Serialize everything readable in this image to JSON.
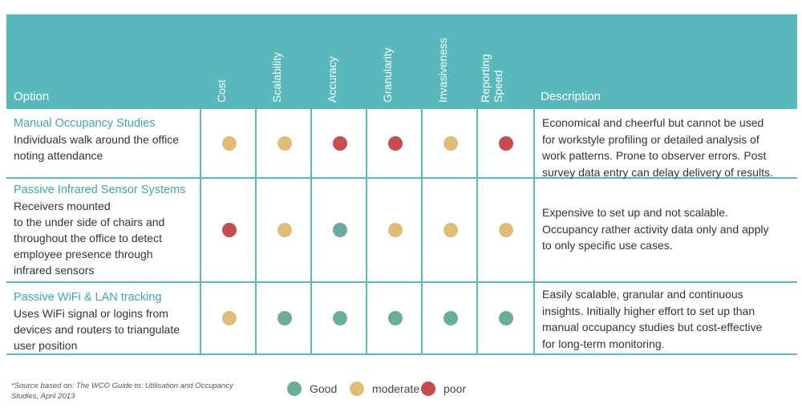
{
  "colors": {
    "header": "#58b8bb",
    "good": "#6aab9c",
    "moderate": "#dfbd77",
    "poor": "#c84b4e",
    "title": "#3aa8ad"
  },
  "header": {
    "option": "Option",
    "description": "Description",
    "criteria": [
      "Cost",
      "Scalability",
      "Accuracy",
      "Granularity",
      "Invasiveness",
      "Reporting\nSpeed"
    ]
  },
  "rows": [
    {
      "title": "Manual Occupancy Studies",
      "desc_lines": [
        "Individuals walk around the office",
        "noting attendance"
      ],
      "ratings": [
        "moderate",
        "moderate",
        "poor",
        "poor",
        "moderate",
        "poor"
      ],
      "description_lines": [
        "Economical and cheerful but cannot be used",
        "for workstyle profiling or detailed analysis of",
        "work patterns. Prone to observer errors. Post",
        "survey data entry can delay delivery of results."
      ]
    },
    {
      "title": "Passive Infrared Sensor Systems",
      "desc_lines": [
        "Receivers mounted",
        "to the under side of chairs and",
        "throughout the office to detect",
        "employee presence through",
        "infrared sensors"
      ],
      "ratings": [
        "poor",
        "moderate",
        "good",
        "moderate",
        "moderate",
        "moderate"
      ],
      "description_lines": [
        "Expensive to set up and not scalable.",
        "Occupancy rather activity data only and apply",
        "to only specific use cases."
      ]
    },
    {
      "title": "Passive WiFi & LAN tracking",
      "desc_lines": [
        "Uses WiFi signal or logins from",
        "devices and routers to triangulate",
        "user position"
      ],
      "ratings": [
        "moderate",
        "good",
        "good",
        "good",
        "good",
        "good"
      ],
      "description_lines": [
        "Easily scalable, granular and continuous",
        "insights. Initially higher effort to set up than",
        "manual occupancy studies but cost-effective",
        "for long-term monitoring."
      ]
    }
  ],
  "footer": {
    "source_note_lines": [
      "*Source based on: The WCO Guide to: Utilisation and Occupancy",
      "Studies, April 2013"
    ]
  },
  "legend": [
    {
      "key": "good",
      "label": "Good"
    },
    {
      "key": "moderate",
      "label": "moderate"
    },
    {
      "key": "poor",
      "label": "poor"
    }
  ]
}
